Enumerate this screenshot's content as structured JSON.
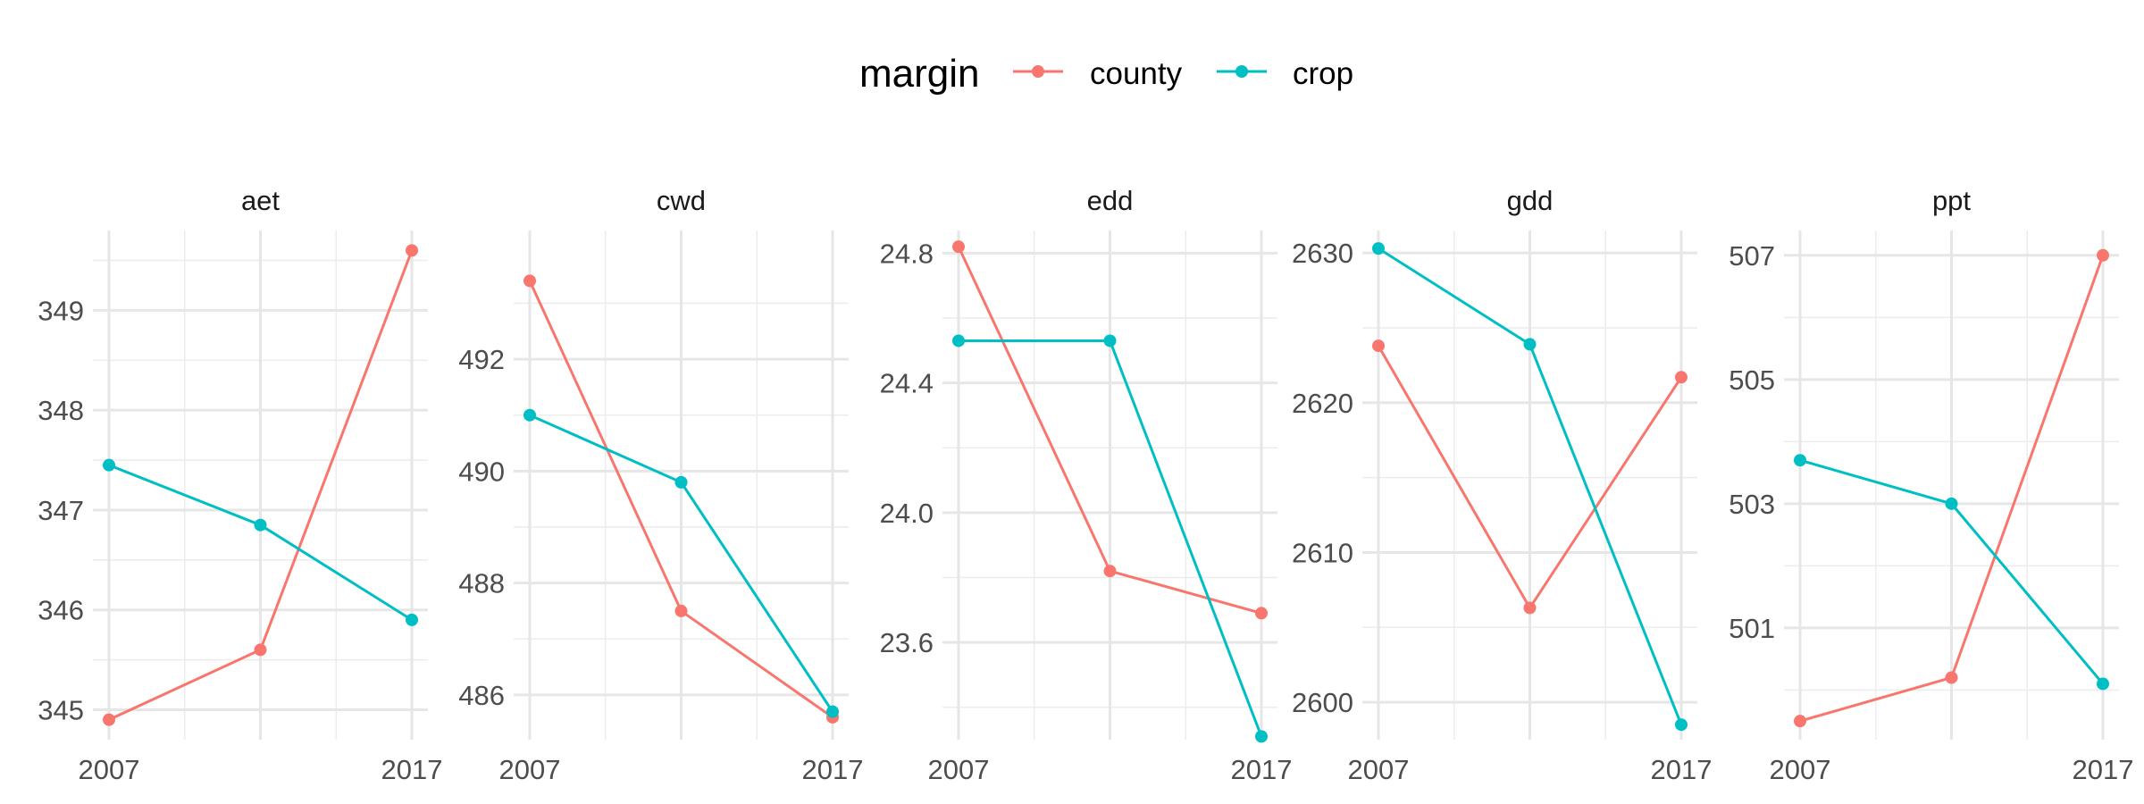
{
  "legend": {
    "title": "margin",
    "items": [
      {
        "label": "county",
        "color": "#F8766D"
      },
      {
        "label": "crop",
        "color": "#00BFC4"
      }
    ]
  },
  "chart_data": {
    "type": "line",
    "x": [
      2007,
      2012,
      2017
    ],
    "x_tick_labels": [
      "2007",
      "2017"
    ],
    "grid": true,
    "legend_position": "top",
    "facets": [
      {
        "name": "aet",
        "ylim": [
          344.7,
          349.8
        ],
        "yticks": [
          345,
          346,
          347,
          348,
          349
        ],
        "series": [
          {
            "name": "county",
            "values": [
              344.9,
              345.6,
              349.6
            ]
          },
          {
            "name": "crop",
            "values": [
              347.45,
              346.85,
              345.9
            ]
          }
        ]
      },
      {
        "name": "cwd",
        "ylim": [
          485.2,
          494.3
        ],
        "yticks": [
          486,
          488,
          490,
          492
        ],
        "series": [
          {
            "name": "county",
            "values": [
              493.4,
              487.5,
              485.6
            ]
          },
          {
            "name": "crop",
            "values": [
              491.0,
              489.8,
              485.7
            ]
          }
        ]
      },
      {
        "name": "edd",
        "ylim": [
          23.3,
          24.87
        ],
        "yticks": [
          "23.6",
          "24.0",
          "24.4",
          "24.8"
        ],
        "series": [
          {
            "name": "county",
            "values": [
              24.82,
              23.82,
              23.69
            ]
          },
          {
            "name": "crop",
            "values": [
              24.53,
              24.53,
              23.31
            ]
          }
        ]
      },
      {
        "name": "gdd",
        "ylim": [
          2597.5,
          2631.5
        ],
        "yticks": [
          2600,
          2610,
          2620,
          2630
        ],
        "series": [
          {
            "name": "county",
            "values": [
              2623.8,
              2606.3,
              2621.7
            ]
          },
          {
            "name": "crop",
            "values": [
              2630.3,
              2623.9,
              2598.5
            ]
          }
        ]
      },
      {
        "name": "ppt",
        "ylim": [
          499.2,
          507.4
        ],
        "yticks": [
          501,
          503,
          505,
          507
        ],
        "series": [
          {
            "name": "county",
            "values": [
              499.5,
              500.2,
              507.0
            ]
          },
          {
            "name": "crop",
            "values": [
              503.7,
              503.0,
              500.1
            ]
          }
        ]
      }
    ]
  }
}
